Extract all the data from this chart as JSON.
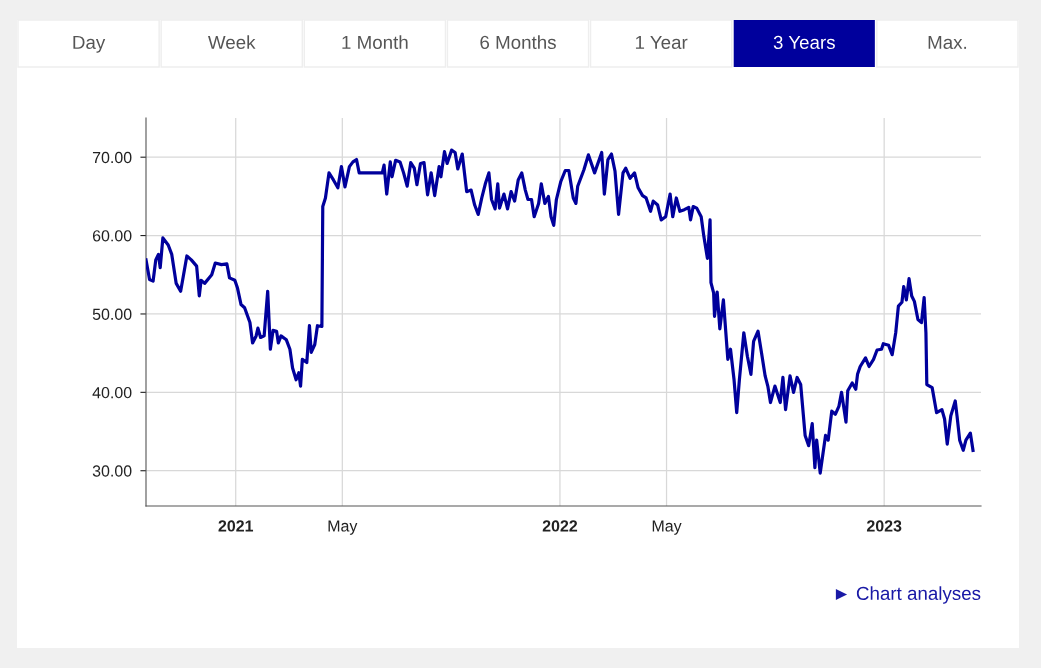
{
  "chart_data": {
    "type": "line",
    "annotations": [
      "Day",
      "Week",
      "1 Month",
      "6 Months",
      "1 Year",
      "3 Years",
      "Max.",
      "► Chart analyses"
    ],
    "xlim": [
      "2020-09-22",
      "2023-04-20"
    ],
    "xticks": [
      {
        "value": "2021-01-01",
        "label": "2021"
      },
      {
        "value": "2021-05-01",
        "label": "May"
      },
      {
        "value": "2022-01-01",
        "label": "2022"
      },
      {
        "value": "2022-05-01",
        "label": "May"
      },
      {
        "value": "2023-01-01",
        "label": "2023"
      }
    ],
    "ylim": [
      25.5,
      75
    ],
    "yticks": [
      {
        "value": 30,
        "label": "30.00"
      },
      {
        "value": 40,
        "label": "40.00"
      },
      {
        "value": 50,
        "label": "50.00"
      },
      {
        "value": 60,
        "label": "60.00"
      },
      {
        "value": 70,
        "label": "70.00"
      }
    ],
    "grid": true,
    "marker": "none",
    "line_style": "solid",
    "series": [
      {
        "color": "#00009c",
        "x": [
          "2020-09-22",
          "2020-09-26",
          "2020-09-30",
          "2020-10-03",
          "2020-10-06",
          "2020-10-08",
          "2020-10-11",
          "2020-10-17",
          "2020-10-21",
          "2020-10-26",
          "2020-10-31",
          "2020-11-03",
          "2020-11-07",
          "2020-11-12",
          "2020-11-18",
          "2020-11-21",
          "2020-11-23",
          "2020-11-27",
          "2020-12-05",
          "2020-12-09",
          "2020-12-16",
          "2020-12-22",
          "2020-12-25",
          "2020-12-31",
          "2021-01-03",
          "2021-01-07",
          "2021-01-11",
          "2021-01-17",
          "2021-01-20",
          "2021-01-24",
          "2021-01-26",
          "2021-01-29",
          "2021-02-02",
          "2021-02-06",
          "2021-02-09",
          "2021-02-12",
          "2021-02-16",
          "2021-02-18",
          "2021-02-21",
          "2021-02-27",
          "2021-03-03",
          "2021-03-06",
          "2021-03-10",
          "2021-03-13",
          "2021-03-15",
          "2021-03-17",
          "2021-03-22",
          "2021-03-25",
          "2021-03-27",
          "2021-03-31",
          "2021-04-03",
          "2021-04-08",
          "2021-04-09",
          "2021-04-12",
          "2021-04-16",
          "2021-04-21",
          "2021-04-26",
          "2021-04-30",
          "2021-05-04",
          "2021-05-09",
          "2021-05-13",
          "2021-05-17",
          "2021-05-20",
          "2021-06-15",
          "2021-06-17",
          "2021-06-20",
          "2021-06-24",
          "2021-06-26",
          "2021-06-30",
          "2021-07-05",
          "2021-07-09",
          "2021-07-13",
          "2021-07-17",
          "2021-07-21",
          "2021-07-24",
          "2021-07-28",
          "2021-08-01",
          "2021-08-05",
          "2021-08-09",
          "2021-08-13",
          "2021-08-18",
          "2021-08-20",
          "2021-08-24",
          "2021-08-27",
          "2021-09-01",
          "2021-09-05",
          "2021-09-08",
          "2021-09-13",
          "2021-09-18",
          "2021-09-23",
          "2021-09-27",
          "2021-10-01",
          "2021-10-05",
          "2021-10-09",
          "2021-10-13",
          "2021-10-16",
          "2021-10-20",
          "2021-10-23",
          "2021-10-25",
          "2021-10-30",
          "2021-11-03",
          "2021-11-07",
          "2021-11-11",
          "2021-11-15",
          "2021-11-19",
          "2021-11-23",
          "2021-11-26",
          "2021-11-30",
          "2021-12-03",
          "2021-12-08",
          "2021-12-11",
          "2021-12-15",
          "2021-12-19",
          "2021-12-22",
          "2021-12-25",
          "2021-12-28",
          "2022-01-02",
          "2022-01-07",
          "2022-01-11",
          "2022-01-16",
          "2022-01-19",
          "2022-01-21",
          "2022-01-28",
          "2022-02-02",
          "2022-02-09",
          "2022-02-17",
          "2022-02-20",
          "2022-02-24",
          "2022-02-28",
          "2022-03-04",
          "2022-03-08",
          "2022-03-13",
          "2022-03-16",
          "2022-03-21",
          "2022-03-26",
          "2022-03-30",
          "2022-04-04",
          "2022-04-08",
          "2022-04-13",
          "2022-04-16",
          "2022-04-21",
          "2022-04-25",
          "2022-04-30",
          "2022-05-05",
          "2022-05-08",
          "2022-05-12",
          "2022-05-16",
          "2022-05-21",
          "2022-05-26",
          "2022-05-28",
          "2022-05-31",
          "2022-06-04",
          "2022-06-09",
          "2022-06-12",
          "2022-06-16",
          "2022-06-19",
          "2022-06-20",
          "2022-06-23",
          "2022-06-24",
          "2022-06-27",
          "2022-06-30",
          "2022-07-04",
          "2022-07-09",
          "2022-07-12",
          "2022-07-16",
          "2022-07-19",
          "2022-07-22",
          "2022-07-27",
          "2022-07-31",
          "2022-08-04",
          "2022-08-07",
          "2022-08-12",
          "2022-08-16",
          "2022-08-20",
          "2022-08-23",
          "2022-08-26",
          "2022-08-31",
          "2022-09-06",
          "2022-09-09",
          "2022-09-12",
          "2022-09-17",
          "2022-09-21",
          "2022-09-25",
          "2022-09-29",
          "2022-10-04",
          "2022-10-08",
          "2022-10-12",
          "2022-10-15",
          "2022-10-17",
          "2022-10-21",
          "2022-10-27",
          "2022-10-30",
          "2022-11-03",
          "2022-11-07",
          "2022-11-11",
          "2022-11-14",
          "2022-11-19",
          "2022-11-21",
          "2022-11-26",
          "2022-11-30",
          "2022-12-02",
          "2022-12-05",
          "2022-12-11",
          "2022-12-15",
          "2022-12-20",
          "2022-12-24",
          "2022-12-29",
          "2022-12-31",
          "2023-01-06",
          "2023-01-10",
          "2023-01-14",
          "2023-01-17",
          "2023-01-21",
          "2023-01-23",
          "2023-01-26",
          "2023-01-29",
          "2023-02-01",
          "2023-02-04",
          "2023-02-08",
          "2023-02-12",
          "2023-02-15",
          "2023-02-17",
          "2023-02-18",
          "2023-02-21",
          "2023-02-24",
          "2023-03-01",
          "2023-03-07",
          "2023-03-10",
          "2023-03-13",
          "2023-03-17",
          "2023-03-22",
          "2023-03-24",
          "2023-03-27",
          "2023-03-31",
          "2023-04-03",
          "2023-04-08",
          "2023-04-11"
        ],
        "values": [
          56.9,
          54.4,
          54.2,
          56.9,
          57.6,
          55.9,
          59.7,
          58.8,
          57.6,
          53.9,
          52.9,
          54.8,
          57.4,
          56.9,
          56.1,
          52.3,
          54.3,
          53.9,
          55.0,
          56.5,
          56.3,
          56.4,
          54.6,
          54.3,
          53.3,
          51.2,
          50.8,
          48.9,
          46.3,
          47.2,
          48.2,
          47.0,
          47.2,
          52.9,
          45.5,
          47.9,
          47.8,
          46.3,
          47.2,
          46.7,
          45.5,
          43.1,
          41.6,
          42.5,
          40.8,
          44.2,
          43.8,
          48.5,
          45.1,
          46.1,
          48.5,
          48.4,
          63.7,
          64.8,
          68.0,
          67.1,
          66.1,
          68.8,
          66.2,
          68.8,
          69.4,
          69.7,
          68.0,
          68.0,
          69.0,
          65.3,
          69.4,
          67.5,
          69.6,
          69.4,
          68.0,
          66.3,
          69.3,
          68.6,
          66.5,
          69.2,
          69.3,
          65.2,
          68.0,
          65.1,
          68.8,
          67.5,
          70.7,
          69.2,
          70.9,
          70.6,
          68.5,
          70.4,
          65.6,
          65.8,
          63.9,
          62.7,
          64.8,
          66.6,
          68.0,
          64.6,
          63.4,
          66.6,
          63.5,
          65.3,
          63.4,
          65.6,
          64.4,
          67.1,
          68.0,
          65.8,
          64.6,
          64.6,
          62.4,
          64.1,
          66.6,
          64.1,
          65.0,
          62.4,
          61.3,
          64.6,
          66.9,
          68.3,
          68.3,
          64.8,
          64.1,
          66.3,
          68.4,
          70.3,
          68.0,
          70.6,
          65.3,
          69.7,
          70.4,
          68.2,
          62.7,
          68.0,
          68.6,
          67.3,
          68.0,
          66.1,
          65.1,
          64.8,
          63.1,
          64.4,
          63.9,
          62.0,
          62.4,
          65.3,
          62.4,
          64.8,
          63.1,
          63.3,
          63.6,
          62.0,
          63.7,
          63.5,
          62.4,
          59.9,
          57.1,
          62.0,
          54.0,
          52.7,
          49.7,
          52.8,
          48.1,
          51.8,
          44.2,
          45.5,
          41.6,
          37.4,
          41.6,
          47.6,
          44.6,
          42.3,
          46.5,
          47.8,
          45.0,
          42.1,
          40.8,
          38.7,
          40.8,
          38.7,
          41.9,
          37.8,
          42.1,
          40.0,
          41.9,
          41.0,
          34.5,
          33.2,
          36.0,
          30.4,
          33.9,
          29.7,
          34.5,
          33.9,
          37.6,
          37.2,
          38.2,
          40.0,
          36.2,
          40.2,
          41.2,
          40.4,
          42.3,
          43.3,
          44.4,
          43.3,
          44.2,
          45.4,
          45.5,
          46.2,
          46.0,
          44.8,
          47.6,
          51.0,
          51.5,
          53.5,
          51.8,
          54.5,
          52.3,
          51.6,
          49.3,
          48.9,
          52.1,
          47.6,
          41.0,
          40.8,
          40.6,
          37.4,
          37.8,
          36.6,
          33.4,
          37.0,
          38.9,
          37.0,
          33.9,
          32.6,
          33.9,
          34.8,
          32.6
        ]
      }
    ]
  }
}
